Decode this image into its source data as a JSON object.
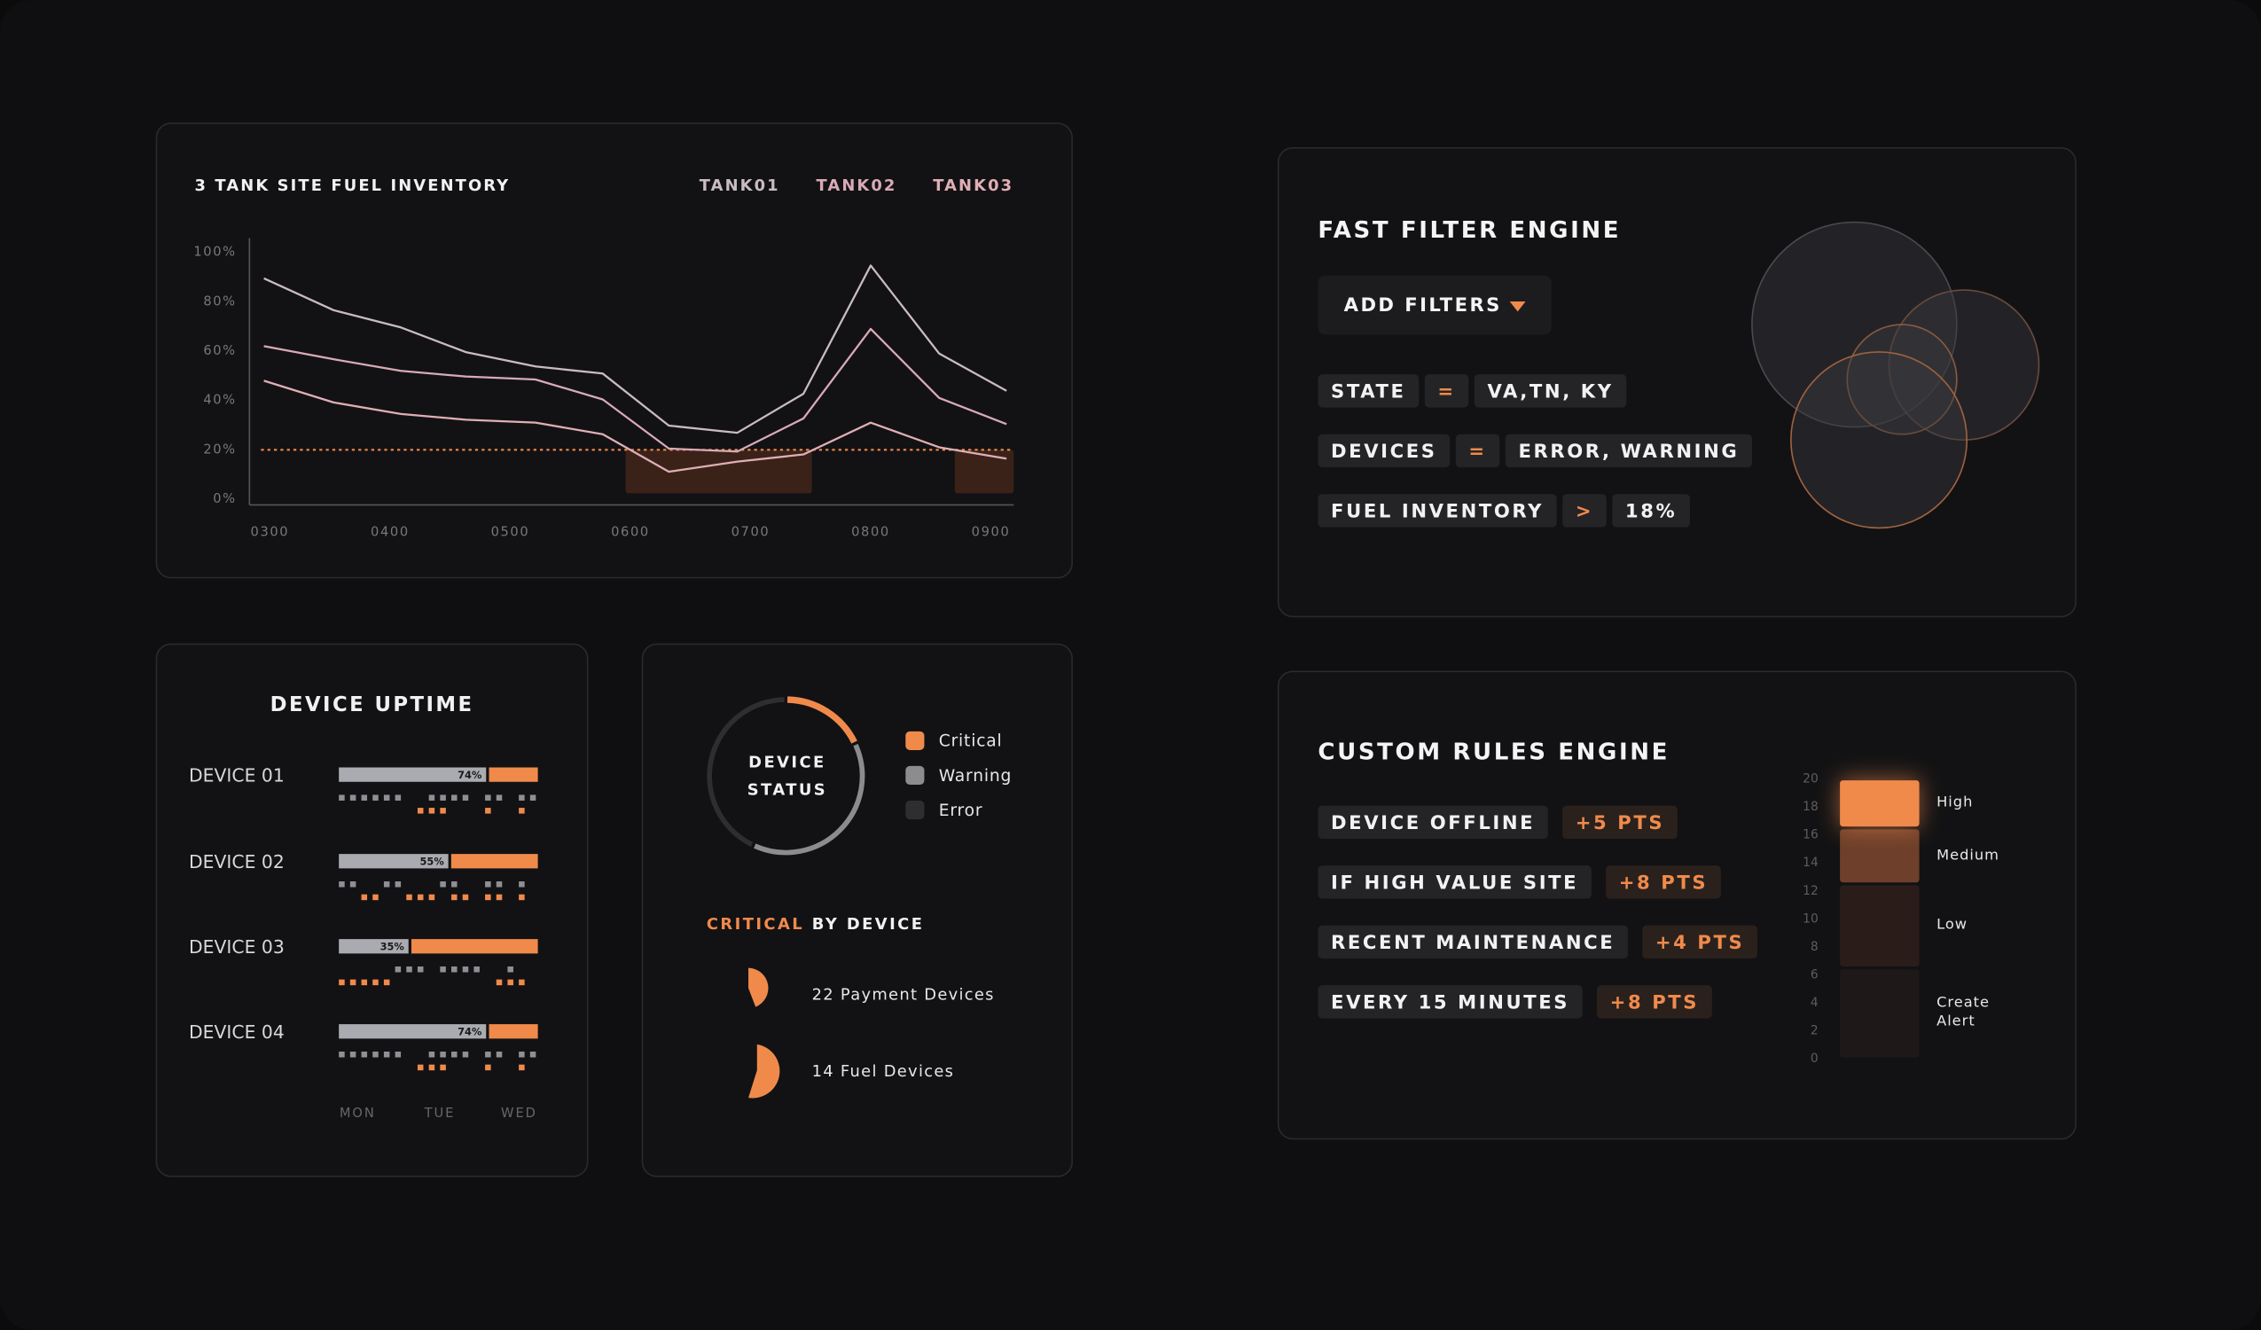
{
  "chart_data": [
    {
      "type": "line",
      "title": "3 TANK SITE FUEL INVENTORY",
      "x": [
        2.95,
        3.53,
        4.09,
        4.63,
        5.21,
        5.77,
        6.32,
        6.89,
        7.44,
        8.0,
        8.57,
        9.13
      ],
      "series": [
        {
          "name": "TANK01",
          "color": "#c9bcc0",
          "values": [
            89.5,
            76.6,
            69.6,
            59.6,
            53.8,
            50.9,
            29.8,
            26.9,
            42.7,
            94.7,
            59,
            43.9
          ]
        },
        {
          "name": "TANK02",
          "color": "#d9aab6",
          "values": [
            62,
            56.7,
            52,
            49.7,
            48.5,
            40.4,
            20.5,
            19.3,
            32.7,
            69,
            41,
            30.4
          ]
        },
        {
          "name": "TANK03",
          "color": "#e0aeb6",
          "values": [
            48,
            39.2,
            34.5,
            32.2,
            31,
            26.3,
            11.1,
            15.2,
            18.1,
            31,
            21,
            16.4
          ]
        }
      ],
      "xlim": [
        2.83,
        9.19
      ],
      "xticks": [
        {
          "value": 3,
          "label": "0300"
        },
        {
          "value": 4,
          "label": "0400"
        },
        {
          "value": 5,
          "label": "0500"
        },
        {
          "value": 6,
          "label": "0600"
        },
        {
          "value": 7,
          "label": "0700"
        },
        {
          "value": 8,
          "label": "0800"
        },
        {
          "value": 9,
          "label": "0900"
        }
      ],
      "ylim": [
        0,
        100
      ],
      "yticks": [
        {
          "value": 0,
          "label": "0%"
        },
        {
          "value": 20,
          "label": "20%"
        },
        {
          "value": 40,
          "label": "40%"
        },
        {
          "value": 60,
          "label": "60%"
        },
        {
          "value": 80,
          "label": "80%"
        },
        {
          "value": 100,
          "label": "100%"
        }
      ],
      "threshold": 20,
      "threshold_color": "#f08a4b",
      "highlight_ranges": [
        [
          5.96,
          7.51
        ],
        [
          8.7,
          9.19
        ]
      ],
      "highlight_color": "#3a2219"
    },
    {
      "type": "bar",
      "title": "DEVICE UPTIME",
      "categories": [
        "DEVICE 01",
        "DEVICE 02",
        "DEVICE 03",
        "DEVICE 04"
      ],
      "values": [
        74,
        55,
        35,
        74
      ],
      "value_labels": [
        "74%",
        "55%",
        "35%",
        "74%"
      ],
      "xlim": [
        0,
        100
      ],
      "color": "#a9abb0",
      "remainder_color": "#f08a4b",
      "day_labels": [
        "MON",
        "TUE",
        "WED"
      ]
    },
    {
      "type": "pie",
      "center_label": [
        "DEVICE",
        "STATUS"
      ],
      "categories": [
        "Critical",
        "Warning",
        "Error"
      ],
      "values": [
        18,
        39,
        43
      ],
      "colors": [
        "#f08a4b",
        "#8c8c8e",
        "#2e2e31"
      ]
    },
    {
      "type": "stacked_bar",
      "categories": [
        "Create Alert",
        "Low",
        "Medium",
        "High"
      ],
      "values": [
        6.5,
        6,
        4,
        3.5
      ],
      "colors": [
        "#1e1918",
        "#2a1d19",
        "#6e3f2a",
        "#f08a4b"
      ],
      "ylim": [
        0,
        20
      ],
      "yticks": [
        0,
        2,
        4,
        6,
        8,
        10,
        12,
        14,
        16,
        18,
        20
      ]
    }
  ],
  "critical_by_device": {
    "title_highlight": "CRITICAL",
    "title_rest": "BY DEVICE",
    "items": [
      {
        "count": 22,
        "label": "Payment Devices"
      },
      {
        "count": 14,
        "label": "Fuel Devices"
      }
    ]
  },
  "filter_engine": {
    "title": "FAST FILTER ENGINE",
    "button": "ADD FILTERS",
    "filters": [
      [
        "STATE",
        "=",
        "VA,TN, KY"
      ],
      [
        "DEVICES",
        "=",
        "ERROR, WARNING"
      ],
      [
        "FUEL INVENTORY",
        ">",
        "18%"
      ]
    ]
  },
  "rules_engine": {
    "title": "CUSTOM RULES ENGINE",
    "rules": [
      [
        "DEVICE OFFLINE",
        "+5 PTS"
      ],
      [
        "IF HIGH VALUE SITE",
        "+8 PTS"
      ],
      [
        "RECENT MAINTENANCE",
        "+4 PTS"
      ],
      [
        "EVERY 15 MINUTES",
        "+8 PTS"
      ]
    ]
  }
}
